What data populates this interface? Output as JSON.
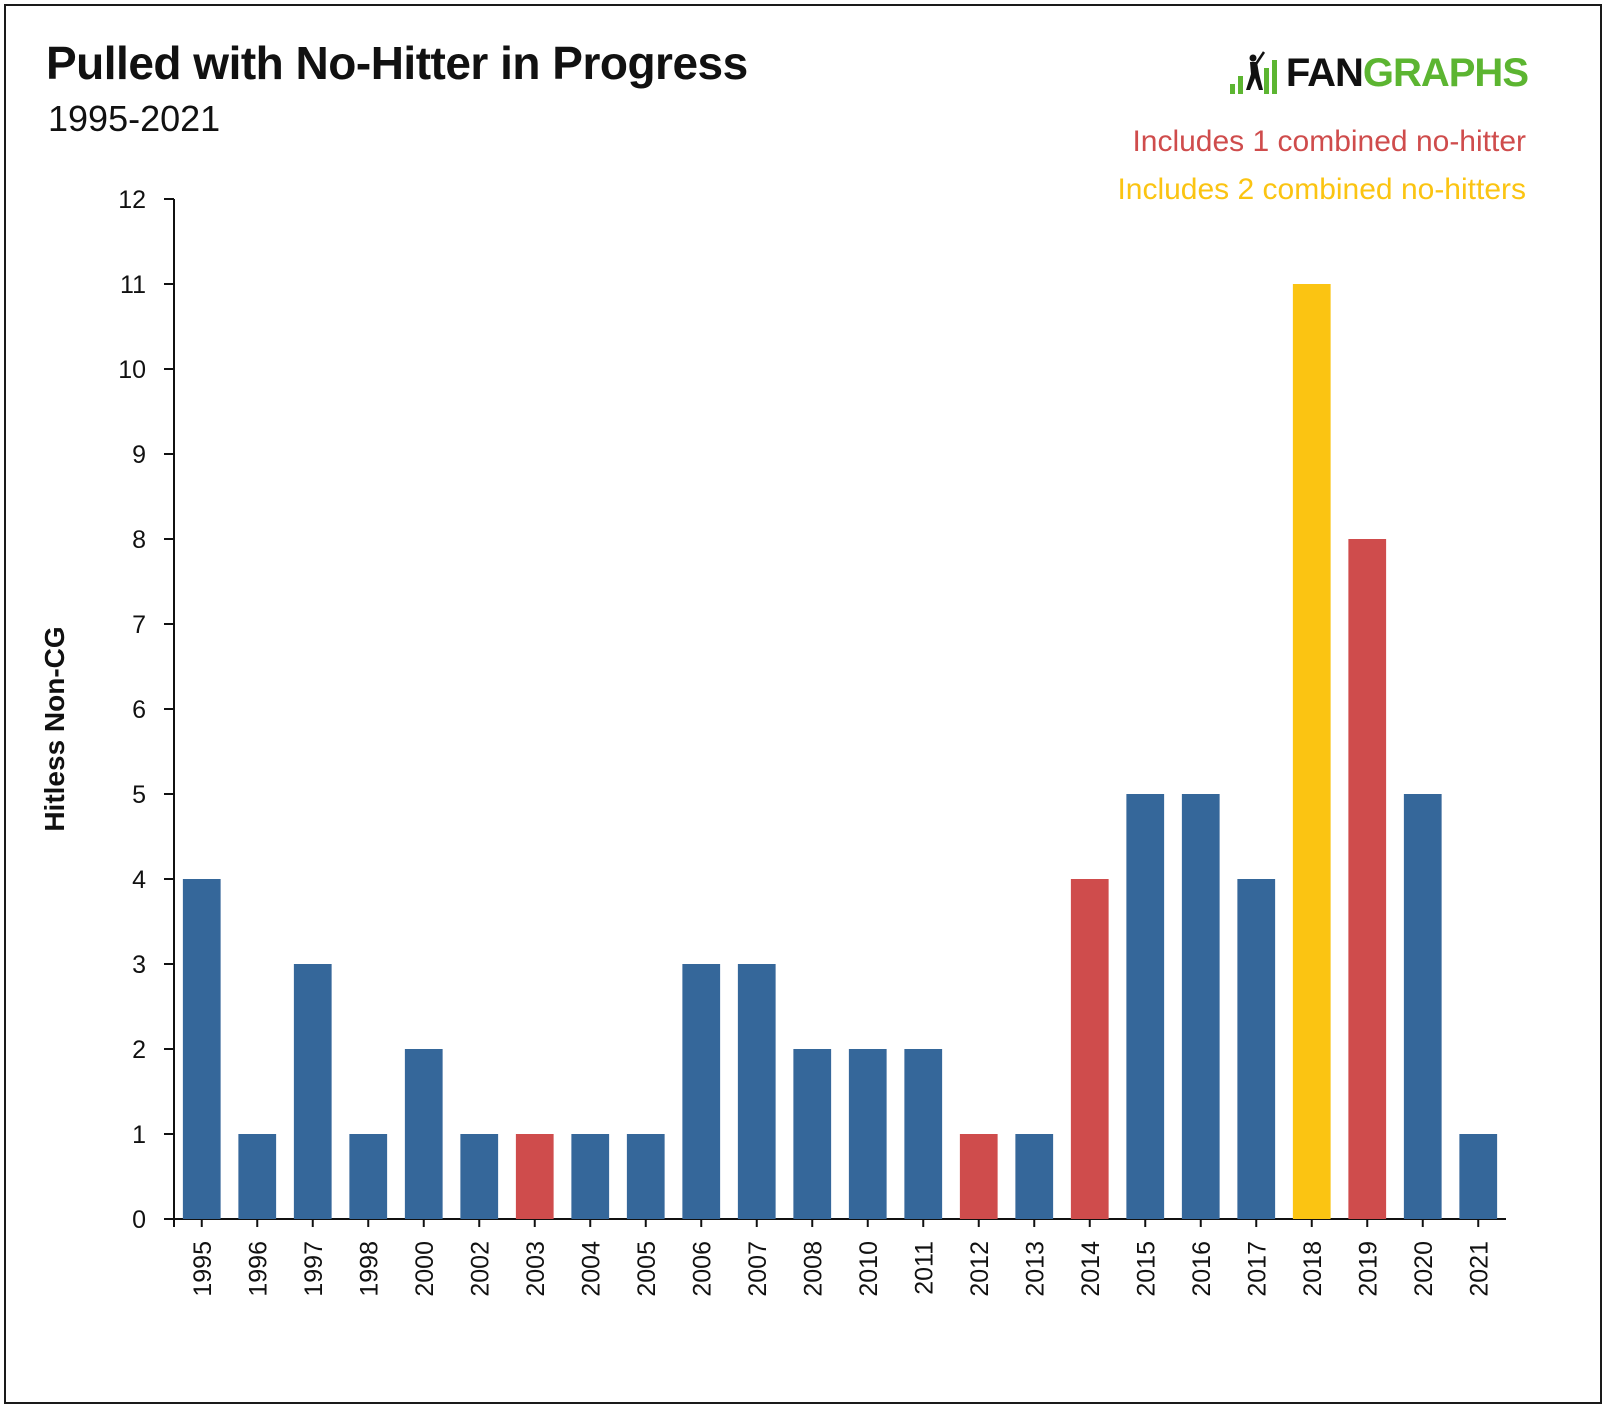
{
  "chart_data": {
    "type": "bar",
    "title": "Pulled with No-Hitter in Progress",
    "subtitle": "1995-2021",
    "xlabel": "",
    "ylabel": "Hitless Non-CG",
    "ylim": [
      0,
      12
    ],
    "yticks": [
      0,
      1,
      2,
      3,
      4,
      5,
      6,
      7,
      8,
      9,
      10,
      11,
      12
    ],
    "grid": false,
    "legend_placement": "top-right",
    "categories": [
      "1995",
      "1996",
      "1997",
      "1998",
      "2000",
      "2002",
      "2003",
      "2004",
      "2005",
      "2006",
      "2007",
      "2008",
      "2010",
      "2011",
      "2012",
      "2013",
      "2014",
      "2015",
      "2016",
      "2017",
      "2018",
      "2019",
      "2020",
      "2021"
    ],
    "values": [
      4,
      1,
      3,
      1,
      2,
      1,
      1,
      1,
      1,
      3,
      3,
      2,
      2,
      2,
      1,
      1,
      4,
      5,
      5,
      4,
      11,
      8,
      5,
      1
    ],
    "combined_no_hitters": [
      0,
      0,
      0,
      0,
      0,
      0,
      1,
      0,
      0,
      0,
      0,
      0,
      0,
      0,
      1,
      0,
      1,
      0,
      0,
      0,
      2,
      1,
      0,
      0
    ],
    "colors": {
      "none": "#35679a",
      "one_combined": "#cf4c4c",
      "two_combined": "#fbc412"
    },
    "annotations": [
      {
        "text": "Includes 1 combined no-hitter",
        "color": "#cf4c4c"
      },
      {
        "text": "Includes 2 combined no-hitters",
        "color": "#fbc412"
      }
    ]
  },
  "brand": {
    "name_part1": "FAN",
    "name_part2": "GRAPHS",
    "icon": "fangraphs-batter-logo-icon",
    "color_part1": "#111111",
    "color_part2": "#5cb531"
  }
}
